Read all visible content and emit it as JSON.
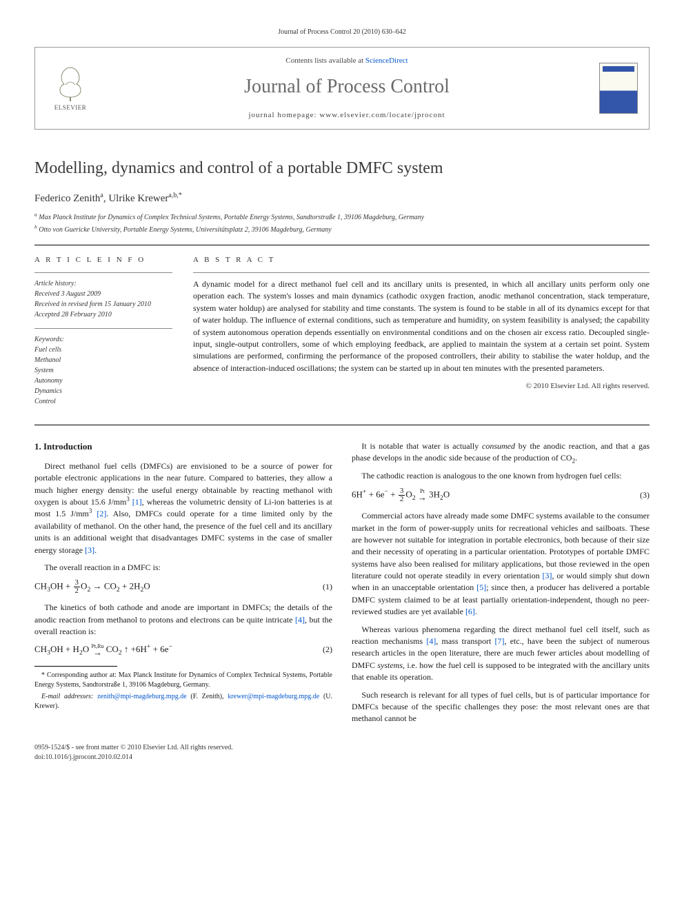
{
  "header_citation": "Journal of Process Control 20 (2010) 630–642",
  "box": {
    "contents_prefix": "Contents lists available at ",
    "contents_link": "ScienceDirect",
    "journal_name": "Journal of Process Control",
    "homepage_prefix": "journal homepage: ",
    "homepage": "www.elsevier.com/locate/jprocont",
    "publisher": "ELSEVIER"
  },
  "title": "Modelling, dynamics and control of a portable DMFC system",
  "authors_html": "Federico Zenith<sup>a</sup>, Ulrike Krewer<sup>a,b,*</sup>",
  "affiliations": [
    "Max Planck Institute for Dynamics of Complex Technical Systems, Portable Energy Systems, Sandtorstraße 1, 39106 Magdeburg, Germany",
    "Otto von Guericke University, Portable Energy Systems, Universitätsplatz 2, 39106 Magdeburg, Germany"
  ],
  "info_label": "A R T I C L E   I N F O",
  "abstract_label": "A B S T R A C T",
  "history": {
    "header": "Article history:",
    "lines": [
      "Received 3 August 2009",
      "Received in revised form 15 January 2010",
      "Accepted 28 February 2010"
    ]
  },
  "keywords": {
    "header": "Keywords:",
    "items": [
      "Fuel cells",
      "Methanol",
      "System",
      "Autonomy",
      "Dynamics",
      "Control"
    ]
  },
  "abstract": "A dynamic model for a direct methanol fuel cell and its ancillary units is presented, in which all ancillary units perform only one operation each. The system's losses and main dynamics (cathodic oxygen fraction, anodic methanol concentration, stack temperature, system water holdup) are analysed for stability and time constants. The system is found to be stable in all of its dynamics except for that of water holdup. The influence of external conditions, such as temperature and humidity, on system feasibility is analysed; the capability of system autonomous operation depends essentially on environmental conditions and on the chosen air excess ratio. Decoupled single-input, single-output controllers, some of which employing feedback, are applied to maintain the system at a certain set point. System simulations are performed, confirming the performance of the proposed controllers, their ability to stabilise the water holdup, and the absence of interaction-induced oscillations; the system can be started up in about ten minutes with the presented parameters.",
  "copyright": "© 2010 Elsevier Ltd. All rights reserved.",
  "section1": "1. Introduction",
  "paragraphs": {
    "p1a": "Direct methanol fuel cells (DMFCs) are envisioned to be a source of power for portable electronic applications in the near future. Compared to batteries, they allow a much higher energy density: the useful energy obtainable by reacting methanol with oxygen is about 15.6 J/mm",
    "p1b": ", whereas the volumetric density of Li-ion batteries is at most 1.5 J/mm",
    "p1c": ". Also, DMFCs could operate for a time limited only by the availability of methanol. On the other hand, the presence of the fuel cell and its ancillary units is an additional weight that disadvantages DMFC systems in the case of smaller energy storage ",
    "p2": "The overall reaction in a DMFC is:",
    "p3a": "The kinetics of both cathode and anode are important in DMFCs; the details of the anodic reaction from methanol to protons and electrons can be quite intricate ",
    "p3b": ", but the overall reaction is:",
    "p4_pre": "It is notable that water is actually ",
    "p4_em": "consumed",
    "p4_post": " by the anodic reaction, and that a gas phase develops in the anodic side because of the production of CO",
    "p5": "The cathodic reaction is analogous to the one known from hydrogen fuel cells:",
    "p6a": "Commercial actors have already made some DMFC systems available to the consumer market in the form of power-supply units for recreational vehicles and sailboats. These are however not suitable for integration in portable electronics, both because of their size and their necessity of operating in a particular orientation. Prototypes of portable DMFC systems have also been realised for military applications, but those reviewed in the open literature could not operate steadily in every orientation ",
    "p6b": ", or would simply shut down when in an unacceptable orientation ",
    "p6c": "; since then, a producer has delivered a portable DMFC system claimed to be at least partially orientation-independent, though no peer-reviewed studies are yet available ",
    "p7a": "Whereas various phenomena regarding the direct methanol fuel cell itself, such as reaction mechanisms ",
    "p7b": ", mass transport ",
    "p7c": ", etc., have been the subject of numerous research articles in the open literature, there are much fewer articles about modelling of DMFC ",
    "p7_em": "systems",
    "p7d": ", i.e. how the fuel cell is supposed to be integrated with the ancillary units that enable its operation.",
    "p8": "Such research is relevant for all types of fuel cells, but is of particular importance for DMFCs because of the specific challenges they pose: the most relevant ones are that methanol cannot be"
  },
  "refs": {
    "r1": "[1]",
    "r2": "[2]",
    "r3": "[3]",
    "r4": "[4]",
    "r5": "[5]",
    "r6": "[6]",
    "r7": "[7]"
  },
  "eq": {
    "e1n": "(1)",
    "e2n": "(2)",
    "e3n": "(3)"
  },
  "footnote": {
    "corr": "* Corresponding author at: Max Planck Institute for Dynamics of Complex Technical Systems, Portable Energy Systems, Sandtorstraße 1, 39106 Magdeburg, Germany.",
    "email_label": "E-mail addresses:",
    "email1": "zenith@mpi-magdeburg.mpg.de",
    "email1_who": " (F. Zenith), ",
    "email2": "krewer@mpi-magdeburg.mpg.de",
    "email2_who": " (U. Krewer)."
  },
  "footer": {
    "line1": "0959-1524/$ - see front matter © 2010 Elsevier Ltd. All rights reserved.",
    "line2": "doi:10.1016/j.jprocont.2010.02.014"
  },
  "colors": {
    "link": "#0056cc",
    "text": "#1a1a1a",
    "gray": "#6a6a6a"
  }
}
